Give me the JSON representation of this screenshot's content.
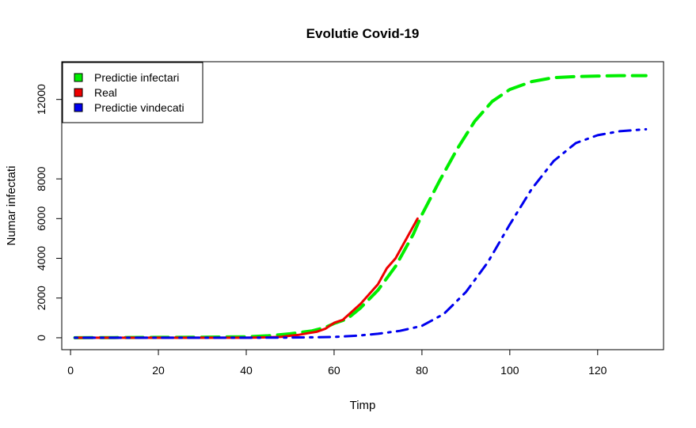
{
  "chart_data": {
    "type": "line",
    "title": "Evolutie Covid-19",
    "xlabel": "Timp",
    "ylabel": "Numar infectati",
    "xlim": [
      -2,
      135
    ],
    "ylim": [
      -600,
      13900
    ],
    "x_ticks": [
      0,
      20,
      40,
      60,
      80,
      100,
      120
    ],
    "y_ticks": [
      0,
      2000,
      4000,
      6000,
      8000,
      12000
    ],
    "grid": false,
    "legend_position": "top-left",
    "series": [
      {
        "name": "Predictie infectari",
        "color": "#00ee00",
        "style": "dashed",
        "x": [
          1,
          10,
          20,
          30,
          40,
          45,
          50,
          55,
          58,
          60,
          63,
          66,
          70,
          74,
          78,
          80,
          84,
          88,
          92,
          96,
          100,
          105,
          110,
          115,
          120,
          125,
          131
        ],
        "y": [
          0,
          10,
          20,
          30,
          50,
          100,
          200,
          350,
          520,
          720,
          950,
          1500,
          2400,
          3600,
          5200,
          6200,
          7900,
          9500,
          10900,
          11900,
          12500,
          12900,
          13100,
          13150,
          13180,
          13200,
          13200
        ]
      },
      {
        "name": "Real",
        "color": "#ee0000",
        "style": "solid",
        "x": [
          1,
          10,
          20,
          30,
          40,
          45,
          48,
          50,
          52,
          54,
          56,
          58,
          60,
          62,
          64,
          66,
          68,
          70,
          72,
          74,
          76,
          78,
          79
        ],
        "y": [
          0,
          0,
          0,
          0,
          0,
          20,
          50,
          100,
          150,
          230,
          300,
          450,
          750,
          900,
          1300,
          1700,
          2200,
          2700,
          3500,
          4000,
          4800,
          5600,
          6000
        ]
      },
      {
        "name": "Predictie vindecati",
        "color": "#0000ee",
        "style": "dotdash",
        "x": [
          1,
          20,
          40,
          50,
          55,
          60,
          65,
          70,
          75,
          80,
          85,
          90,
          95,
          100,
          105,
          110,
          115,
          120,
          125,
          131
        ],
        "y": [
          0,
          0,
          0,
          10,
          20,
          40,
          100,
          200,
          350,
          600,
          1200,
          2300,
          3800,
          5700,
          7500,
          8900,
          9800,
          10200,
          10400,
          10500
        ]
      }
    ]
  }
}
